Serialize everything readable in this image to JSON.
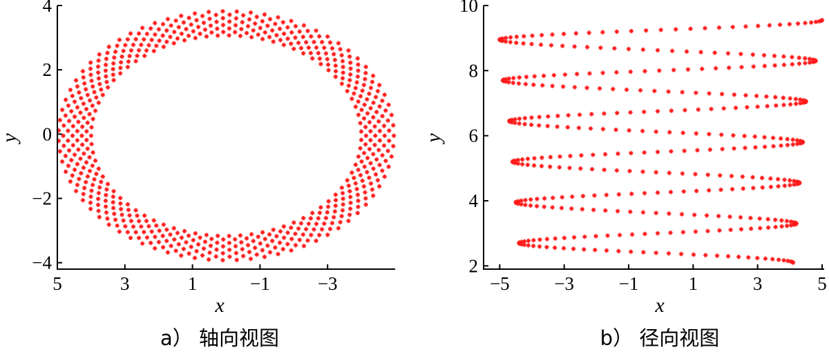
{
  "chart_data": [
    {
      "type": "scatter",
      "caption": "a） 轴向视图",
      "xlabel": "x",
      "ylabel": "y",
      "xlim": [
        5,
        -5
      ],
      "ylim": [
        -4.2,
        4
      ],
      "xticks": [
        5,
        3,
        1,
        -1,
        -3
      ],
      "xtick_labels": [
        "5",
        "3",
        "1",
        "−1",
        "−3"
      ],
      "yticks": [
        4,
        2,
        0,
        -2,
        -4
      ],
      "ytick_labels": [
        "4",
        "2",
        "0",
        "−2",
        "−4"
      ],
      "marker_color": "#ff1a1a",
      "grid": false,
      "legend": "none",
      "series": [
        {
          "description_values": "helical band projected on x-y plane: ellipse center (0,0), semi-axis x 4.8, semi-axis y 3.5, band half-width 0.55",
          "points": [
            [
              -4.8,
              0.0
            ],
            [
              -4.7,
              1.0
            ],
            [
              -4.2,
              2.0
            ],
            [
              -3.2,
              3.0
            ],
            [
              -1.6,
              3.7
            ],
            [
              0.0,
              4.0
            ],
            [
              1.6,
              3.6
            ],
            [
              3.2,
              2.8
            ],
            [
              4.3,
              1.6
            ],
            [
              5.0,
              0.0
            ],
            [
              4.3,
              -1.8
            ],
            [
              3.2,
              -3.0
            ],
            [
              1.6,
              -3.8
            ],
            [
              0.0,
              -4.1
            ],
            [
              -1.6,
              -3.7
            ],
            [
              -3.2,
              -2.9
            ],
            [
              -4.3,
              -1.7
            ]
          ]
        }
      ]
    },
    {
      "type": "line",
      "caption": "b） 径向视图",
      "xlabel": "x",
      "ylabel": "y",
      "xlim": [
        -5.5,
        5
      ],
      "ylim": [
        1.9,
        10
      ],
      "xticks": [
        -5,
        -3,
        -1,
        1,
        3,
        5
      ],
      "xtick_labels": [
        "−5",
        "−3",
        "−1",
        "1",
        "3",
        "5"
      ],
      "yticks": [
        2,
        4,
        6,
        8,
        10
      ],
      "ytick_labels": [
        "2",
        "4",
        "6",
        "8",
        "10"
      ],
      "marker_color": "#ff1a1a",
      "grid": false,
      "legend": "none",
      "series": [
        {
          "x": [
            4.1,
            -4.4,
            4.2,
            -4.5,
            4.3,
            -4.6,
            4.4,
            -4.7,
            4.5,
            -4.9,
            4.8,
            -5.0,
            5.0
          ],
          "y": [
            2.1,
            2.7,
            3.3,
            3.95,
            4.55,
            5.2,
            5.8,
            6.45,
            7.05,
            7.7,
            8.3,
            8.95,
            9.55
          ]
        }
      ]
    }
  ]
}
